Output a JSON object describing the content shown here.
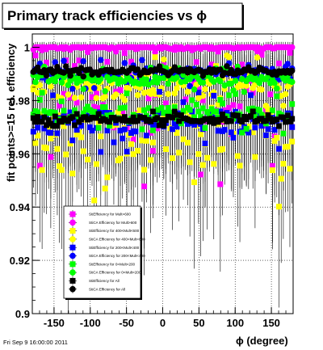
{
  "title": "Primary track efficiencies vs ϕ",
  "timestamp": "Fri Sep  9 16:00:00 2011",
  "chart_data": {
    "type": "scatter",
    "title": "Primary track efficiencies vs ϕ",
    "xlabel": "ϕ (degree)",
    "ylabel": "fit points>=15 rel. efficiency",
    "xlim": [
      -180,
      180
    ],
    "ylim": [
      0.9,
      1.005
    ],
    "xticks": [
      -150,
      -100,
      -50,
      0,
      50,
      100,
      150
    ],
    "yticks": [
      0.9,
      0.92,
      0.94,
      0.96,
      0.98,
      1
    ],
    "ytick_labels": [
      "0.9",
      "0.92",
      "0.94",
      "0.96",
      "0.98",
      "1"
    ],
    "grid": true,
    "legend_position": "bottom-left",
    "series": [
      {
        "name": "StiEfficiency  for Mult>600",
        "color": "#ff00ff",
        "marker": "square",
        "center": 0.985,
        "spread": 0.045,
        "min": 0.91
      },
      {
        "name": "StiCA Efficiency  for Mult>600",
        "color": "#ff00ff",
        "marker": "circle",
        "center": 1.0,
        "spread": 0.002,
        "min": 0.99
      },
      {
        "name": "StiEfficiency  for 400<Mult<600",
        "color": "#ffff00",
        "marker": "square",
        "center": 0.965,
        "spread": 0.032,
        "min": 0.935
      },
      {
        "name": "StiCA Efficiency  for 400<Mult<600",
        "color": "#ffff00",
        "marker": "circle",
        "center": 0.985,
        "spread": 0.012,
        "min": 0.96
      },
      {
        "name": "StiEfficiency  for 200<Mult<400",
        "color": "#0000ff",
        "marker": "square",
        "center": 0.972,
        "spread": 0.012,
        "min": 0.955
      },
      {
        "name": "StiCA Efficiency  for 200<Mult<400",
        "color": "#0000ff",
        "marker": "circle",
        "center": 0.99,
        "spread": 0.006,
        "min": 0.975
      },
      {
        "name": "StiEfficiency  for 0<Mult<200",
        "color": "#00ff00",
        "marker": "square",
        "center": 0.975,
        "spread": 0.008,
        "min": 0.962
      },
      {
        "name": "StiCA Efficiency  for 0<Mult<200",
        "color": "#00ff00",
        "marker": "circle",
        "center": 0.988,
        "spread": 0.005,
        "min": 0.978
      },
      {
        "name": "StiEfficiency  for All",
        "color": "#000000",
        "marker": "square",
        "center": 0.973,
        "spread": 0.003,
        "min": 0.97
      },
      {
        "name": "StiCA Efficiency  for All",
        "color": "#000000",
        "marker": "circle",
        "center": 0.991,
        "spread": 0.002,
        "min": 0.988
      }
    ]
  }
}
